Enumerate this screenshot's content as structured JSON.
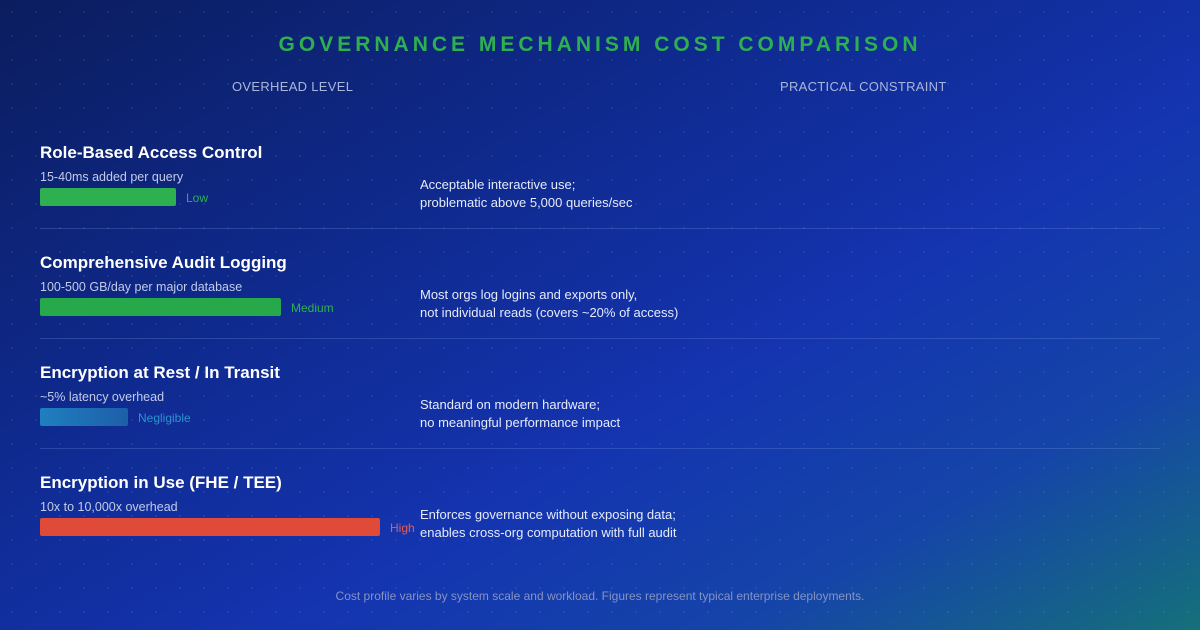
{
  "title": "GOVERNANCE MECHANISM COST COMPARISON",
  "columns": {
    "left": "OVERHEAD LEVEL",
    "right": "PRACTICAL CONSTRAINT"
  },
  "mechanisms": [
    {
      "name": "Role-Based Access Control",
      "cost": "15-40ms added per query",
      "level": "Low",
      "level_fraction": 0.4,
      "color": "#2fb050",
      "level_color": "#2fb050",
      "constraint": [
        "Acceptable interactive use;",
        "problematic above 5,000 queries/sec"
      ]
    },
    {
      "name": "Comprehensive Audit Logging",
      "cost": "100-500 GB/day per major database",
      "level": "Medium",
      "level_fraction": 0.71,
      "color": "#27a84a",
      "level_color": "#2fb050",
      "constraint": [
        "Most orgs log logins and exports only,",
        "not individual reads (covers ~20% of access)"
      ]
    },
    {
      "name": "Encryption at Rest / In Transit",
      "cost": "~5% latency overhead",
      "level": "Negligible",
      "level_fraction": 0.26,
      "color": "#1f7fbf",
      "level_color": "#2a93d0",
      "constraint": [
        "Standard on modern hardware;",
        "no meaningful performance impact"
      ]
    },
    {
      "name": "Encryption in Use (FHE / TEE)",
      "cost": "10x to 10,000x overhead",
      "level": "High",
      "level_fraction": 1.0,
      "color": "#e04a38",
      "level_color": "#ef5a47",
      "constraint": [
        "Enforces governance without exposing data;",
        "enables cross-org computation with full audit"
      ]
    }
  ],
  "footnote": "Cost profile varies by system scale and workload. Figures represent typical enterprise deployments."
}
